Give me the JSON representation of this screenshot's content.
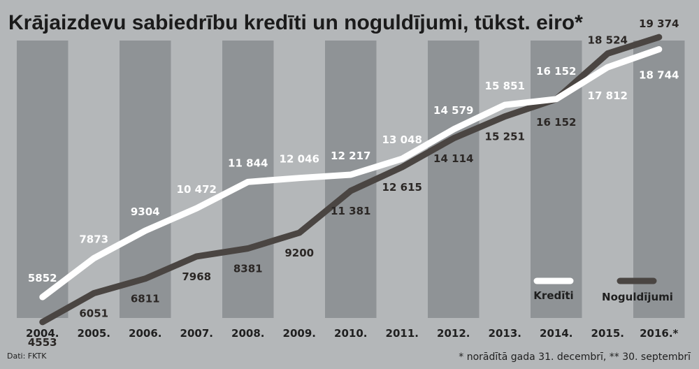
{
  "chart_data": {
    "type": "line",
    "title": "Krājaizdevu sabiedrību kredīti un noguldījumi, tūkst. eiro*",
    "categories": [
      "2004.",
      "2005.",
      "2006.",
      "2007.",
      "2008.",
      "2009.",
      "2010.",
      "2011.",
      "2012.",
      "2013.",
      "2014.",
      "2015.",
      "2016.*"
    ],
    "series": [
      {
        "name": "Kredīti",
        "color": "#ffffff",
        "values": [
          5852,
          7873,
          9304,
          10472,
          11844,
          12046,
          12217,
          13048,
          14579,
          15851,
          16152,
          17812,
          18744
        ],
        "labels": [
          "5852",
          "7873",
          "9304",
          "10 472",
          "11 844",
          "12 046",
          "12 217",
          "13 048",
          "14 579",
          "15 851",
          "16 152",
          "17 812",
          "18 744"
        ]
      },
      {
        "name": "Noguldījumi",
        "color": "#4a4542",
        "values": [
          4553,
          6051,
          6811,
          7968,
          8381,
          9200,
          11381,
          12615,
          14114,
          15251,
          16152,
          18524,
          19374
        ],
        "labels": [
          "4553",
          "6051",
          "6811",
          "7968",
          "8381",
          "9200",
          "11 381",
          "12 615",
          "14 114",
          "15 251",
          "16 152",
          "18 524",
          "19 374"
        ]
      }
    ],
    "legend_position": "bottom-right",
    "grid": false
  },
  "source": "Dati: FKTK",
  "footnote": "* norādītā gada 31. decembrī, ** 30. septembrī",
  "colors": {
    "background": "#b4b7b9",
    "band_dark": "#8f9396",
    "kredits": "#ffffff",
    "noguldijumi": "#4a4542"
  }
}
